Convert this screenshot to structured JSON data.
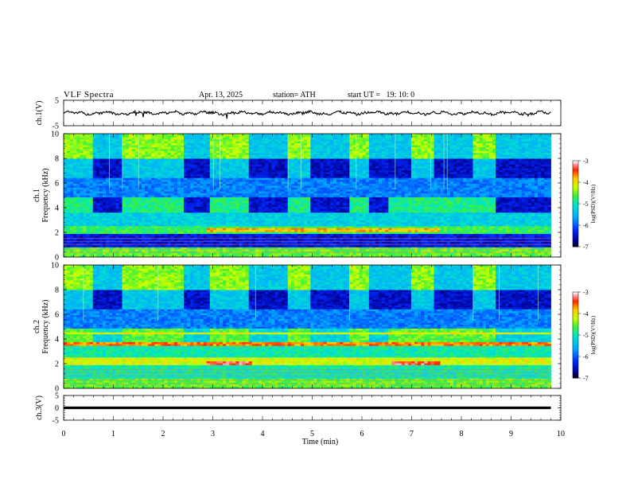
{
  "header": {
    "title": "VLF Spectra",
    "date": "Apr. 13, 2025",
    "station": "station= ATH",
    "start": "start UT =   19: 10: 0"
  },
  "chart_data": [
    {
      "type": "line",
      "ylabel": "ch.1(V)",
      "ylim": [
        -5,
        5
      ],
      "yticks": [
        "5",
        "-5"
      ],
      "trace_level": 0
    },
    {
      "type": "heatmap",
      "ylabel": "ch.1\nFrequency (kHz)",
      "ylim": [
        0,
        10
      ],
      "yticks": [
        "0",
        "2",
        "4",
        "6",
        "8",
        "10"
      ],
      "colorbar": {
        "label": "log(PSD)(V²/Hz)",
        "ticks": [
          "-3",
          "-4",
          "-5",
          "-6",
          "-7"
        ],
        "range": [
          -7,
          -3
        ]
      }
    },
    {
      "type": "heatmap",
      "ylabel": "ch.2\nFrequency (kHz)",
      "ylim": [
        0,
        10
      ],
      "yticks": [
        "0",
        "2",
        "4",
        "6",
        "8",
        "10"
      ],
      "colorbar": {
        "label": "log(PSD)(V²/Hz)",
        "ticks": [
          "-3",
          "-4",
          "-5",
          "-6",
          "-7"
        ],
        "range": [
          -7,
          -3
        ]
      }
    },
    {
      "type": "line",
      "ylabel": "ch.3(V)",
      "ylim": [
        -5,
        5
      ],
      "yticks": [
        "5",
        "0",
        "-5"
      ],
      "trace_level": 0
    }
  ],
  "x_axis": {
    "label": "Time (min)",
    "ticks": [
      "0",
      "1",
      "2",
      "3",
      "4",
      "5",
      "6",
      "7",
      "8",
      "9",
      "10"
    ],
    "range": [
      0,
      10
    ],
    "data_end": 9.8
  }
}
